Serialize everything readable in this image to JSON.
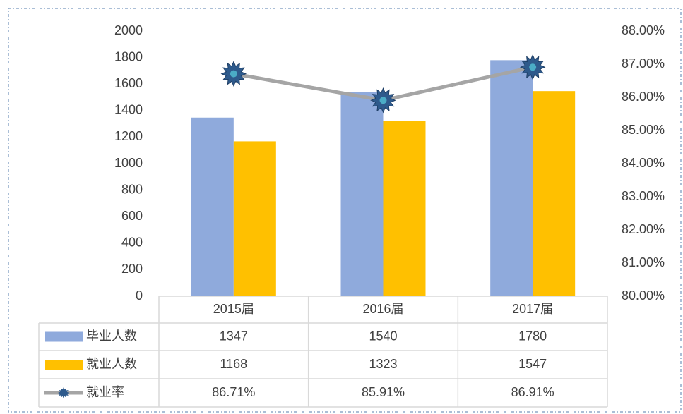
{
  "chart_data": {
    "type": "bar",
    "categories": [
      "2015届",
      "2016届",
      "2017届"
    ],
    "series": [
      {
        "name": "毕业人数",
        "color": "#8faadc",
        "values": [
          1347,
          1540,
          1780
        ]
      },
      {
        "name": "就业人数",
        "color": "#ffc000",
        "values": [
          1168,
          1323,
          1547
        ]
      },
      {
        "name": "就业率",
        "type": "line",
        "axis": "y2",
        "color": "#a5a5a5",
        "values": [
          86.71,
          85.91,
          86.91
        ],
        "value_labels": [
          "86.71%",
          "85.91%",
          "86.91%"
        ]
      }
    ],
    "ylim": [
      0,
      2000
    ],
    "yticks": [
      0,
      200,
      400,
      600,
      800,
      1000,
      1200,
      1400,
      1600,
      1800,
      2000
    ],
    "y2lim": [
      80,
      88
    ],
    "y2ticks": [
      {
        "value": 80,
        "label": "80.00%"
      },
      {
        "value": 81,
        "label": "81.00%"
      },
      {
        "value": 82,
        "label": "82.00%"
      },
      {
        "value": 83,
        "label": "83.00%"
      },
      {
        "value": 84,
        "label": "84.00%"
      },
      {
        "value": 85,
        "label": "85.00%"
      },
      {
        "value": 86,
        "label": "86.00%"
      },
      {
        "value": 87,
        "label": "87.00%"
      },
      {
        "value": 88,
        "label": "88.00%"
      }
    ],
    "grid": false,
    "data_table": true
  }
}
